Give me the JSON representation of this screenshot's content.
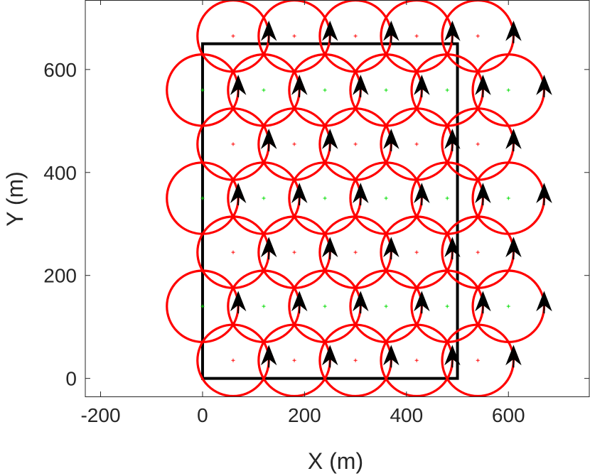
{
  "chart_data": {
    "type": "scatter",
    "title": "",
    "xlabel": "X (m)",
    "ylabel": "Y (m)",
    "xlim": [
      -230,
      760
    ],
    "ylim": [
      -35,
      735
    ],
    "xticks": [
      -200,
      0,
      200,
      400,
      600
    ],
    "yticks": [
      0,
      200,
      400,
      600
    ],
    "xtick_labels": [
      "-200",
      "0",
      "200",
      "400",
      "600"
    ],
    "ytick_labels": [
      "0",
      "200",
      "400",
      "600"
    ],
    "grid": false,
    "box": true,
    "coverage_radius": 70,
    "region": {
      "x": [
        0,
        500
      ],
      "y": [
        0,
        650
      ]
    },
    "series": [
      {
        "role": "sensors",
        "x": [
          60,
          180,
          300,
          420,
          540,
          0,
          120,
          240,
          360,
          480,
          600,
          60,
          180,
          300,
          420,
          540,
          0,
          120,
          240,
          360,
          480,
          600,
          60,
          180,
          300,
          420,
          540,
          0,
          120,
          240,
          360,
          480,
          600,
          60,
          180,
          300,
          420,
          540
        ],
        "y": [
          665,
          665,
          665,
          665,
          665,
          560,
          560,
          560,
          560,
          560,
          560,
          455,
          455,
          455,
          455,
          455,
          350,
          350,
          350,
          350,
          350,
          350,
          245,
          245,
          245,
          245,
          245,
          140,
          140,
          140,
          140,
          140,
          140,
          35,
          35,
          35,
          35,
          35
        ]
      },
      {
        "role": "target_points",
        "x": [
          0,
          120,
          240,
          360,
          480,
          0,
          120,
          240,
          360,
          480,
          0,
          120,
          240,
          360,
          480
        ],
        "y": [
          560,
          560,
          560,
          560,
          560,
          350,
          350,
          350,
          350,
          350,
          140,
          140,
          140,
          140,
          140
        ]
      }
    ],
    "colors": {
      "circle": "#ff0000",
      "center_odd": "#ff0000",
      "center_even": "#00dd00",
      "arrow": "#000000",
      "region": "#000000",
      "axis": "#262626"
    }
  }
}
